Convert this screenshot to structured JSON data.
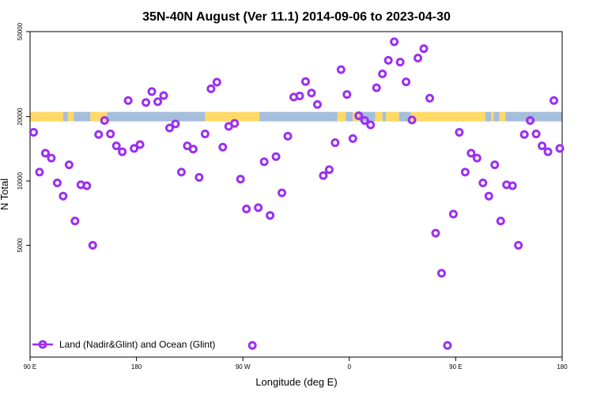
{
  "chart_data": {
    "type": "scatter",
    "title": "35N-40N August (Ver 11.1)   2014-09-06 to 2023-04-30",
    "xlabel": "Longitude (deg E)",
    "ylabel": "N Total",
    "x_ticks": [
      {
        "value": 90,
        "label": "90 E"
      },
      {
        "value": 180,
        "label": "180"
      },
      {
        "value": 270,
        "label": "90 W"
      },
      {
        "value": 360,
        "label": "0"
      },
      {
        "value": 450,
        "label": "90 E"
      },
      {
        "value": 540,
        "label": "180"
      }
    ],
    "y_ticks": [
      {
        "value": 5000,
        "label": "5000"
      },
      {
        "value": 10000,
        "label": "10000"
      },
      {
        "value": 20000,
        "label": "20000"
      },
      {
        "value": 50000,
        "label": "50000"
      }
    ],
    "y_scale": "log",
    "xlim": [
      90,
      540
    ],
    "ylim": [
      1500,
      50000
    ],
    "grid": false,
    "legend_position": "bottom-left",
    "colors": {
      "series": "#9B30F0",
      "land": "#FFD966",
      "ocean": "#A5BEDC"
    },
    "land_ocean_band": {
      "y_center": 20000,
      "segments": [
        {
          "type": "land",
          "from": 90,
          "to": 118
        },
        {
          "type": "ocean",
          "from": 118,
          "to": 122
        },
        {
          "type": "land",
          "from": 122,
          "to": 127
        },
        {
          "type": "ocean",
          "from": 127,
          "to": 141
        },
        {
          "type": "land",
          "from": 141,
          "to": 155
        },
        {
          "type": "ocean",
          "from": 155,
          "to": 238
        },
        {
          "type": "land",
          "from": 238,
          "to": 284
        },
        {
          "type": "ocean",
          "from": 284,
          "to": 350
        },
        {
          "type": "land",
          "from": 350,
          "to": 357
        },
        {
          "type": "ocean",
          "from": 357,
          "to": 363
        },
        {
          "type": "land",
          "from": 363,
          "to": 368
        },
        {
          "type": "ocean",
          "from": 368,
          "to": 382
        },
        {
          "type": "land",
          "from": 382,
          "to": 388
        },
        {
          "type": "ocean",
          "from": 388,
          "to": 391
        },
        {
          "type": "land",
          "from": 391,
          "to": 402
        },
        {
          "type": "ocean",
          "from": 402,
          "to": 412
        },
        {
          "type": "land",
          "from": 412,
          "to": 475
        },
        {
          "type": "ocean",
          "from": 475,
          "to": 480
        },
        {
          "type": "land",
          "from": 480,
          "to": 482
        },
        {
          "type": "ocean",
          "from": 482,
          "to": 487
        },
        {
          "type": "land",
          "from": 487,
          "to": 492
        },
        {
          "type": "ocean",
          "from": 492,
          "to": 540
        }
      ]
    },
    "series": [
      {
        "name": "Land (Nadir&Glint) and Ocean (Glint)",
        "points": [
          [
            93,
            16900
          ],
          [
            98,
            11000
          ],
          [
            103,
            13500
          ],
          [
            108,
            12800
          ],
          [
            113,
            9800
          ],
          [
            118,
            8500
          ],
          [
            123,
            11900
          ],
          [
            128,
            6500
          ],
          [
            133,
            9600
          ],
          [
            138,
            9500
          ],
          [
            143,
            5000
          ],
          [
            148,
            16500
          ],
          [
            153,
            19200
          ],
          [
            158,
            16600
          ],
          [
            163,
            14600
          ],
          [
            168,
            13700
          ],
          [
            173,
            23800
          ],
          [
            178,
            14200
          ],
          [
            183,
            14800
          ],
          [
            188,
            23300
          ],
          [
            193,
            26200
          ],
          [
            198,
            23500
          ],
          [
            203,
            25100
          ],
          [
            208,
            17700
          ],
          [
            213,
            18500
          ],
          [
            218,
            11000
          ],
          [
            223,
            14600
          ],
          [
            228,
            14100
          ],
          [
            233,
            10400
          ],
          [
            238,
            16600
          ],
          [
            243,
            27000
          ],
          [
            248,
            29000
          ],
          [
            253,
            14400
          ],
          [
            258,
            18000
          ],
          [
            263,
            18600
          ],
          [
            268,
            10200
          ],
          [
            273,
            7400
          ],
          [
            278,
            1700
          ],
          [
            283,
            7500
          ],
          [
            288,
            12300
          ],
          [
            293,
            6900
          ],
          [
            298,
            13000
          ],
          [
            303,
            8800
          ],
          [
            308,
            16200
          ],
          [
            313,
            24700
          ],
          [
            318,
            25000
          ],
          [
            323,
            29200
          ],
          [
            328,
            25800
          ],
          [
            333,
            22800
          ],
          [
            338,
            10600
          ],
          [
            343,
            11300
          ],
          [
            348,
            15100
          ],
          [
            353,
            33200
          ],
          [
            358,
            25400
          ],
          [
            363,
            15800
          ],
          [
            368,
            20200
          ],
          [
            373,
            19200
          ],
          [
            378,
            18300
          ],
          [
            383,
            27300
          ],
          [
            388,
            31700
          ],
          [
            393,
            36700
          ],
          [
            398,
            44800
          ],
          [
            403,
            36000
          ],
          [
            408,
            29100
          ],
          [
            413,
            19300
          ],
          [
            418,
            37600
          ],
          [
            423,
            41600
          ],
          [
            428,
            24400
          ],
          [
            433,
            5700
          ],
          [
            438,
            3700
          ],
          [
            443,
            1700
          ],
          [
            448,
            7000
          ],
          [
            453,
            16900
          ],
          [
            458,
            11000
          ],
          [
            463,
            13500
          ],
          [
            468,
            12800
          ],
          [
            473,
            9800
          ],
          [
            478,
            8500
          ],
          [
            483,
            11900
          ],
          [
            488,
            6500
          ],
          [
            493,
            9600
          ],
          [
            498,
            9500
          ],
          [
            503,
            5000
          ],
          [
            508,
            16500
          ],
          [
            513,
            19200
          ],
          [
            518,
            16600
          ],
          [
            523,
            14600
          ],
          [
            528,
            13700
          ],
          [
            533,
            23800
          ],
          [
            538,
            14200
          ]
        ]
      }
    ]
  }
}
